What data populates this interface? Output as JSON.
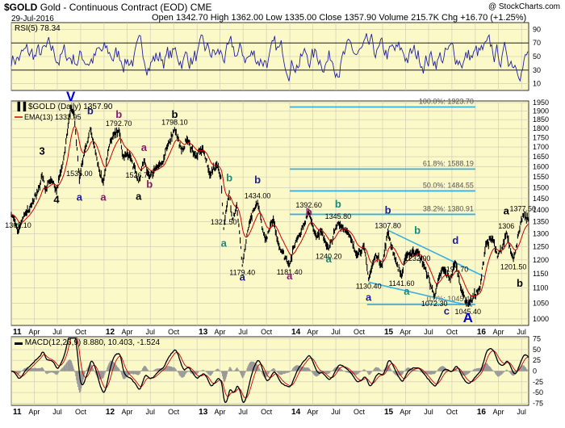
{
  "header": {
    "symbol": "$GOLD",
    "name": "Gold - Continuous Contract (EOD)",
    "exchange": "CME",
    "date": "29-Jul-2016",
    "quote": "Open 1342.70  High 1362.00  Low 1335.00  Close 1357.90  Volume 215.7K  Chg +16.70 (+1.25%)",
    "source": "@ StockCharts.com"
  },
  "colors": {
    "panel_bg": "#fcf9c8",
    "grid": "#c8c8b4",
    "price": "#000000",
    "ema": "#cc0000",
    "rsi": "#2020a0",
    "fib": "#3ab0e0",
    "trend": "#3ab0e0",
    "count_black": "#000000",
    "count_blue": "#20208a",
    "count_purple": "#8a1a6a",
    "count_teal": "#1a8a7a",
    "count_navy": "#0000cc"
  },
  "chart_data": [
    {
      "type": "line",
      "title": "RSI(5) 78.34",
      "indicator": "RSI(5)",
      "last": 78.34,
      "ylim": [
        0,
        100
      ],
      "yticks": [
        10,
        30,
        50,
        70,
        90
      ],
      "reference_lines": [
        30,
        70
      ]
    },
    {
      "type": "line",
      "title": "$GOLD (Daily) 1357.90",
      "legend": [
        "EMA(13) 1333.95"
      ],
      "scale": "log",
      "ylim": [
        980,
        1960
      ],
      "yticks": [
        1000,
        1050,
        1100,
        1150,
        1200,
        1250,
        1300,
        1350,
        1400,
        1450,
        1500,
        1550,
        1600,
        1650,
        1700,
        1750,
        1800,
        1850,
        1900,
        1950
      ],
      "x_ticks": [
        "11",
        "Apr",
        "Jul",
        "Oct",
        "12",
        "Apr",
        "Jul",
        "Oct",
        "13",
        "Apr",
        "Jul",
        "Oct",
        "14",
        "Apr",
        "Jul",
        "Oct",
        "15",
        "Apr",
        "Jul",
        "Oct",
        "16",
        "Apr",
        "Jul"
      ],
      "xlim": [
        "2011-01-01",
        "2016-07-29"
      ],
      "series": [
        {
          "name": "$GOLD",
          "points": [
            [
              "2011-01-01",
              1380
            ],
            [
              "2011-01-28",
              1309.1
            ],
            [
              "2011-02-20",
              1380
            ],
            [
              "2011-03-20",
              1420
            ],
            [
              "2011-04-15",
              1480
            ],
            [
              "2011-05-02",
              1560
            ],
            [
              "2011-05-15",
              1490
            ],
            [
              "2011-06-05",
              1535
            ],
            [
              "2011-06-28",
              1485
            ],
            [
              "2011-07-20",
              1600
            ],
            [
              "2011-08-10",
              1780
            ],
            [
              "2011-08-23",
              1920
            ],
            [
              "2011-09-05",
              1880
            ],
            [
              "2011-09-26",
              1535
            ],
            [
              "2011-10-15",
              1670
            ],
            [
              "2011-11-08",
              1800
            ],
            [
              "2011-11-25",
              1700
            ],
            [
              "2011-12-15",
              1570
            ],
            [
              "2011-12-29",
              1527
            ],
            [
              "2012-01-25",
              1730
            ],
            [
              "2012-02-28",
              1792.7
            ],
            [
              "2012-03-15",
              1650
            ],
            [
              "2012-04-10",
              1660
            ],
            [
              "2012-05-16",
              1526.7
            ],
            [
              "2012-06-06",
              1630
            ],
            [
              "2012-06-28",
              1550
            ],
            [
              "2012-07-25",
              1600
            ],
            [
              "2012-08-20",
              1620
            ],
            [
              "2012-09-10",
              1720
            ],
            [
              "2012-10-05",
              1798.1
            ],
            [
              "2012-11-01",
              1680
            ],
            [
              "2012-11-22",
              1740
            ],
            [
              "2012-12-28",
              1650
            ],
            [
              "2013-01-24",
              1690
            ],
            [
              "2013-02-20",
              1560
            ],
            [
              "2013-03-20",
              1610
            ],
            [
              "2013-04-05",
              1550
            ],
            [
              "2013-04-16",
              1321.5
            ],
            [
              "2013-05-08",
              1480
            ],
            [
              "2013-05-20",
              1360
            ],
            [
              "2013-06-06",
              1420
            ],
            [
              "2013-06-28",
              1179.4
            ],
            [
              "2013-07-25",
              1340
            ],
            [
              "2013-08-27",
              1434
            ],
            [
              "2013-09-20",
              1300
            ],
            [
              "2013-10-01",
              1280
            ],
            [
              "2013-10-28",
              1360
            ],
            [
              "2013-11-20",
              1250
            ],
            [
              "2013-12-31",
              1181.4
            ],
            [
              "2014-01-24",
              1270
            ],
            [
              "2014-02-26",
              1340
            ],
            [
              "2014-03-17",
              1392.6
            ],
            [
              "2014-04-15",
              1290
            ],
            [
              "2014-05-05",
              1310
            ],
            [
              "2014-06-03",
              1240.2
            ],
            [
              "2014-07-10",
              1345.8
            ],
            [
              "2014-08-15",
              1310
            ],
            [
              "2014-09-20",
              1220
            ],
            [
              "2014-10-20",
              1250
            ],
            [
              "2014-11-07",
              1130.4
            ],
            [
              "2014-12-05",
              1220
            ],
            [
              "2014-12-31",
              1180
            ],
            [
              "2015-01-22",
              1307.8
            ],
            [
              "2015-02-20",
              1200
            ],
            [
              "2015-03-17",
              1141.6
            ],
            [
              "2015-04-06",
              1220
            ],
            [
              "2015-05-18",
              1232
            ],
            [
              "2015-06-15",
              1175
            ],
            [
              "2015-07-24",
              1072.3
            ],
            [
              "2015-08-24",
              1168
            ],
            [
              "2015-09-25",
              1130
            ],
            [
              "2015-10-15",
              1191.7
            ],
            [
              "2015-11-10",
              1085
            ],
            [
              "2015-12-03",
              1045.4
            ],
            [
              "2016-01-20",
              1100
            ],
            [
              "2016-02-11",
              1260
            ],
            [
              "2016-03-10",
              1280
            ],
            [
              "2016-03-28",
              1210
            ],
            [
              "2016-04-18",
              1250
            ],
            [
              "2016-05-02",
              1306
            ],
            [
              "2016-05-30",
              1201.5
            ],
            [
              "2016-06-24",
              1320
            ],
            [
              "2016-07-06",
              1377.5
            ],
            [
              "2016-07-29",
              1357.9
            ]
          ]
        }
      ],
      "fib_levels": [
        {
          "label": "100.0%: 1923.70",
          "value": 1923.7
        },
        {
          "label": "61.8%: 1588.19",
          "value": 1588.19
        },
        {
          "label": "50.0%: 1484.55",
          "value": 1484.55
        },
        {
          "label": "38.2%: 1380.91",
          "value": 1380.91
        },
        {
          "label": "0.0%: 1045.40",
          "value": 1045.4
        }
      ],
      "price_labels": [
        {
          "text": "1309.10",
          "x": "2011-01-28",
          "y": 1309.1
        },
        {
          "text": "1535.00",
          "x": "2011-09-26",
          "y": 1535
        },
        {
          "text": "1792.70",
          "x": "2012-02-28",
          "y": 1792.7
        },
        {
          "text": "1526.70",
          "x": "2012-05-16",
          "y": 1526.7
        },
        {
          "text": "1798.10",
          "x": "2012-10-05",
          "y": 1798.1
        },
        {
          "text": "1321.50",
          "x": "2013-04-16",
          "y": 1321.5
        },
        {
          "text": "1434.00",
          "x": "2013-08-27",
          "y": 1434
        },
        {
          "text": "1179.40",
          "x": "2013-06-28",
          "y": 1179.4
        },
        {
          "text": "1181.40",
          "x": "2013-12-31",
          "y": 1181.4
        },
        {
          "text": "1392.60",
          "x": "2014-03-17",
          "y": 1392.6
        },
        {
          "text": "1345.80",
          "x": "2014-07-10",
          "y": 1345.8
        },
        {
          "text": "1240.20",
          "x": "2014-06-03",
          "y": 1240.2
        },
        {
          "text": "1130.40",
          "x": "2014-11-07",
          "y": 1130.4
        },
        {
          "text": "1307.80",
          "x": "2015-01-22",
          "y": 1307.8
        },
        {
          "text": "1232.00",
          "x": "2015-05-18",
          "y": 1232
        },
        {
          "text": "1141.60",
          "x": "2015-03-17",
          "y": 1141.6
        },
        {
          "text": "1191.70",
          "x": "2015-10-15",
          "y": 1191.7
        },
        {
          "text": "1072.30",
          "x": "2015-07-24",
          "y": 1072.3
        },
        {
          "text": "1045.40",
          "x": "2015-12-03",
          "y": 1045.4
        },
        {
          "text": "1306",
          "x": "2016-05-02",
          "y": 1306
        },
        {
          "text": "1201.50",
          "x": "2016-05-30",
          "y": 1201.5
        },
        {
          "text": "1377.50",
          "x": "2016-07-06",
          "y": 1377.5
        }
      ],
      "wave_labels": [
        {
          "text": "V",
          "color": "count_navy",
          "x": "2011-08-23",
          "y": 1960
        },
        {
          "text": "3",
          "color": "count_black",
          "x": "2011-05-02",
          "y": 1660
        },
        {
          "text": "4",
          "color": "count_black",
          "x": "2011-06-28",
          "y": 1430
        },
        {
          "text": "a",
          "color": "count_blue",
          "x": "2011-09-26",
          "y": 1440
        },
        {
          "text": "b",
          "color": "count_blue",
          "x": "2011-11-08",
          "y": 1880
        },
        {
          "text": "a",
          "color": "count_purple",
          "x": "2011-12-29",
          "y": 1440
        },
        {
          "text": "b",
          "color": "count_purple",
          "x": "2012-02-28",
          "y": 1860
        },
        {
          "text": "a",
          "color": "count_purple",
          "x": "2012-06-06",
          "y": 1680
        },
        {
          "text": "b",
          "color": "count_purple",
          "x": "2012-06-28",
          "y": 1500
        },
        {
          "text": "a",
          "color": "count_black",
          "x": "2012-05-16",
          "y": 1445
        },
        {
          "text": "b",
          "color": "count_black",
          "x": "2012-10-05",
          "y": 1860
        },
        {
          "text": "b",
          "color": "count_teal",
          "x": "2013-05-08",
          "y": 1530
        },
        {
          "text": "a",
          "color": "count_teal",
          "x": "2013-04-16",
          "y": 1250
        },
        {
          "text": "a",
          "color": "count_blue",
          "x": "2013-06-28",
          "y": 1125
        },
        {
          "text": "b",
          "color": "count_blue",
          "x": "2013-08-27",
          "y": 1520
        },
        {
          "text": "a",
          "color": "count_purple",
          "x": "2013-12-31",
          "y": 1130
        },
        {
          "text": "b",
          "color": "count_purple",
          "x": "2014-03-17",
          "y": 1375
        },
        {
          "text": "b",
          "color": "count_teal",
          "x": "2014-07-10",
          "y": 1410
        },
        {
          "text": "a",
          "color": "count_teal",
          "x": "2014-06-03",
          "y": 1190
        },
        {
          "text": "a",
          "color": "count_blue",
          "x": "2014-11-07",
          "y": 1058
        },
        {
          "text": "b",
          "color": "count_blue",
          "x": "2015-01-22",
          "y": 1385
        },
        {
          "text": "b",
          "color": "count_teal",
          "x": "2015-05-18",
          "y": 1300
        },
        {
          "text": "a",
          "color": "count_teal",
          "x": "2015-04-06",
          "y": 1078
        },
        {
          "text": "c",
          "color": "count_blue",
          "x": "2015-09-10",
          "y": 1013
        },
        {
          "text": "d",
          "color": "count_blue",
          "x": "2015-10-15",
          "y": 1260
        },
        {
          "text": "A",
          "color": "count_navy",
          "x": "2015-12-03",
          "y": 990
        },
        {
          "text": "a",
          "color": "count_black",
          "x": "2016-05-02",
          "y": 1380
        },
        {
          "text": "b",
          "color": "count_black",
          "x": "2016-06-24",
          "y": 1105
        }
      ]
    },
    {
      "type": "line",
      "title": "MACD(12,26,9) 8.880, 10.403, -1.524",
      "indicator": "MACD(12,26,9)",
      "values": {
        "macd": 8.88,
        "signal": 10.403,
        "histogram": -1.524
      },
      "ylim": [
        -80,
        80
      ],
      "yticks": [
        -75,
        -50,
        -25,
        0,
        25,
        50,
        75
      ]
    }
  ]
}
